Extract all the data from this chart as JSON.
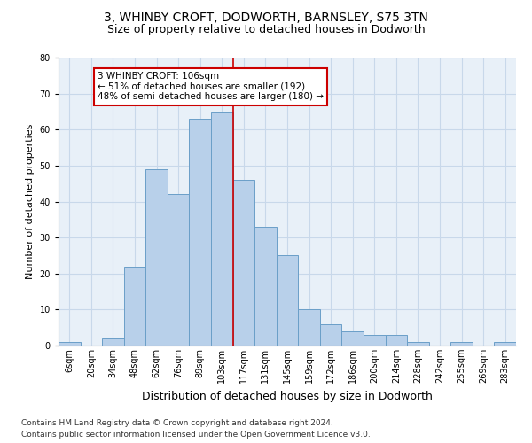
{
  "title1": "3, WHINBY CROFT, DODWORTH, BARNSLEY, S75 3TN",
  "title2": "Size of property relative to detached houses in Dodworth",
  "xlabel": "Distribution of detached houses by size in Dodworth",
  "ylabel": "Number of detached properties",
  "categories": [
    "6sqm",
    "20sqm",
    "34sqm",
    "48sqm",
    "62sqm",
    "76sqm",
    "89sqm",
    "103sqm",
    "117sqm",
    "131sqm",
    "145sqm",
    "159sqm",
    "172sqm",
    "186sqm",
    "200sqm",
    "214sqm",
    "228sqm",
    "242sqm",
    "255sqm",
    "269sqm",
    "283sqm"
  ],
  "values": [
    1,
    0,
    2,
    22,
    49,
    42,
    63,
    65,
    46,
    33,
    25,
    10,
    6,
    4,
    3,
    3,
    1,
    0,
    1,
    0,
    1
  ],
  "bar_color": "#b8d0ea",
  "bar_edge_color": "#6a9fc8",
  "annotation_text": "3 WHINBY CROFT: 106sqm\n← 51% of detached houses are smaller (192)\n48% of semi-detached houses are larger (180) →",
  "annotation_box_color": "#ffffff",
  "annotation_box_edge": "#cc0000",
  "redline_x": 7.5,
  "ylim": [
    0,
    80
  ],
  "yticks": [
    0,
    10,
    20,
    30,
    40,
    50,
    60,
    70,
    80
  ],
  "grid_color": "#c8d8ea",
  "background_color": "#e8f0f8",
  "footer1": "Contains HM Land Registry data © Crown copyright and database right 2024.",
  "footer2": "Contains public sector information licensed under the Open Government Licence v3.0.",
  "title1_fontsize": 10,
  "title2_fontsize": 9,
  "xlabel_fontsize": 9,
  "ylabel_fontsize": 8,
  "tick_fontsize": 7,
  "footer_fontsize": 6.5,
  "annot_fontsize": 7.5
}
